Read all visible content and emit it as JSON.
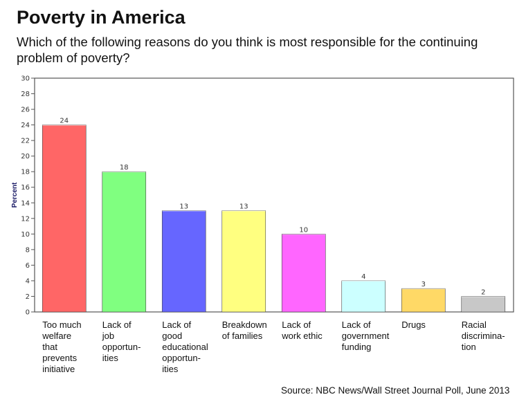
{
  "title": "Poverty in America",
  "subtitle": "Which of the following reasons do you think is most responsible for the continuing problem of poverty?",
  "source": "Source: NBC News/Wall Street Journal Poll, June 2013",
  "chart_data": {
    "type": "bar",
    "title": "Poverty in America",
    "xlabel": "",
    "ylabel": "Percent",
    "ylim": [
      0,
      30
    ],
    "yticks": [
      0,
      2,
      4,
      6,
      8,
      10,
      12,
      14,
      16,
      18,
      20,
      22,
      24,
      26,
      28,
      30
    ],
    "grid": false,
    "categories": [
      "Too much welfare that prevents initiative",
      "Lack of job opportun-ities",
      "Lack of good educational opportun-ities",
      "Breakdown of families",
      "Lack of work ethic",
      "Lack of government funding",
      "Drugs",
      "Racial discrimina-tion"
    ],
    "category_lines": [
      [
        "Too much",
        "welfare",
        "that",
        "prevents",
        "initiative"
      ],
      [
        "Lack of",
        "job",
        "opportun-",
        "ities"
      ],
      [
        "Lack of",
        "good",
        "educational",
        "opportun-",
        "ities"
      ],
      [
        "Breakdown",
        "of families"
      ],
      [
        "Lack of",
        "work ethic"
      ],
      [
        "Lack of",
        "government",
        "funding"
      ],
      [
        "Drugs"
      ],
      [
        "Racial",
        "discrimina-",
        "tion"
      ]
    ],
    "values": [
      24,
      18,
      13,
      13,
      10,
      4,
      3,
      2
    ],
    "colors": [
      "#ff6666",
      "#80ff80",
      "#6666ff",
      "#ffff80",
      "#ff66ff",
      "#ccffff",
      "#ffd966",
      "#c8c8c8"
    ]
  }
}
